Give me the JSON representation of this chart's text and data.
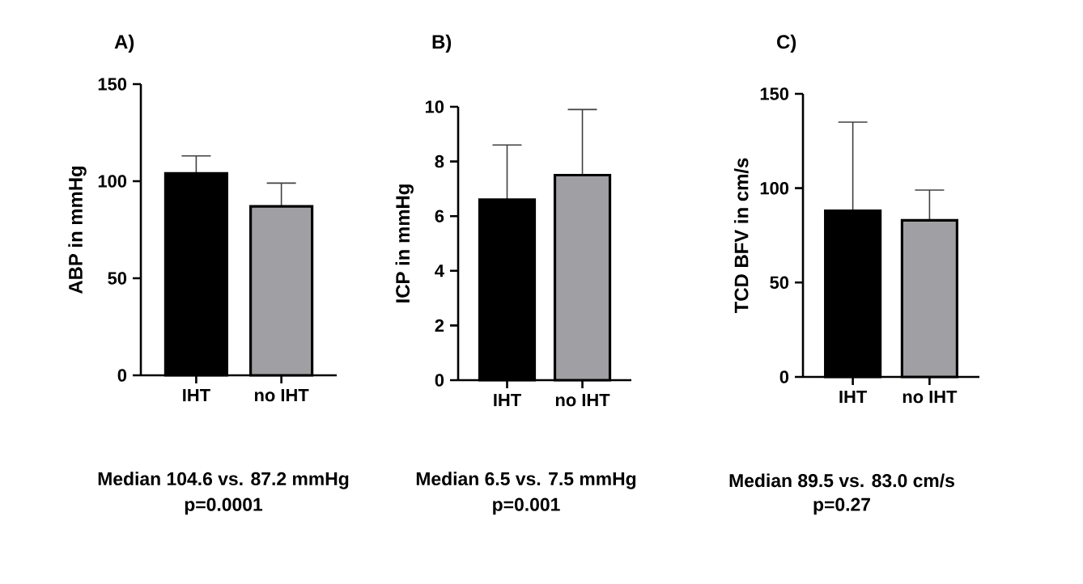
{
  "chart_data": [
    {
      "type": "bar",
      "title": "A)",
      "ylabel": "ABP in mmHg",
      "categories": [
        "IHT",
        "no IHT"
      ],
      "values": [
        104,
        87
      ],
      "colors": [
        "#000000",
        "#a0a0a4"
      ],
      "errors": [
        [
          104,
          113
        ],
        [
          87,
          99
        ]
      ],
      "ylim": [
        0,
        150
      ],
      "yticks": [
        0,
        50,
        100,
        150
      ],
      "annotations": [
        "Median 104.6 vs. 87.2 mmHg",
        "p=0.0001"
      ]
    },
    {
      "type": "bar",
      "title": "B)",
      "ylabel": "ICP in mmHg",
      "categories": [
        "IHT",
        "no IHT"
      ],
      "values": [
        6.6,
        7.5
      ],
      "colors": [
        "#000000",
        "#a0a0a4"
      ],
      "errors": [
        [
          6.6,
          8.6
        ],
        [
          7.5,
          9.9
        ]
      ],
      "ylim": [
        0,
        10
      ],
      "yticks": [
        0,
        2,
        4,
        6,
        8,
        10
      ],
      "annotations": [
        "Median 6.5 vs. 7.5 mmHg",
        "p=0.001"
      ]
    },
    {
      "type": "bar",
      "title": "C)",
      "ylabel": "TCD BFV in cm/s",
      "categories": [
        "IHT",
        "no IHT"
      ],
      "values": [
        88,
        83
      ],
      "colors": [
        "#000000",
        "#a0a0a4"
      ],
      "errors": [
        [
          88,
          135
        ],
        [
          83,
          99
        ]
      ],
      "ylim": [
        0,
        150
      ],
      "yticks": [
        0,
        50,
        100,
        150
      ],
      "annotations": [
        "Median 89.5 vs. 83.0 cm/s",
        "p=0.27"
      ]
    }
  ]
}
